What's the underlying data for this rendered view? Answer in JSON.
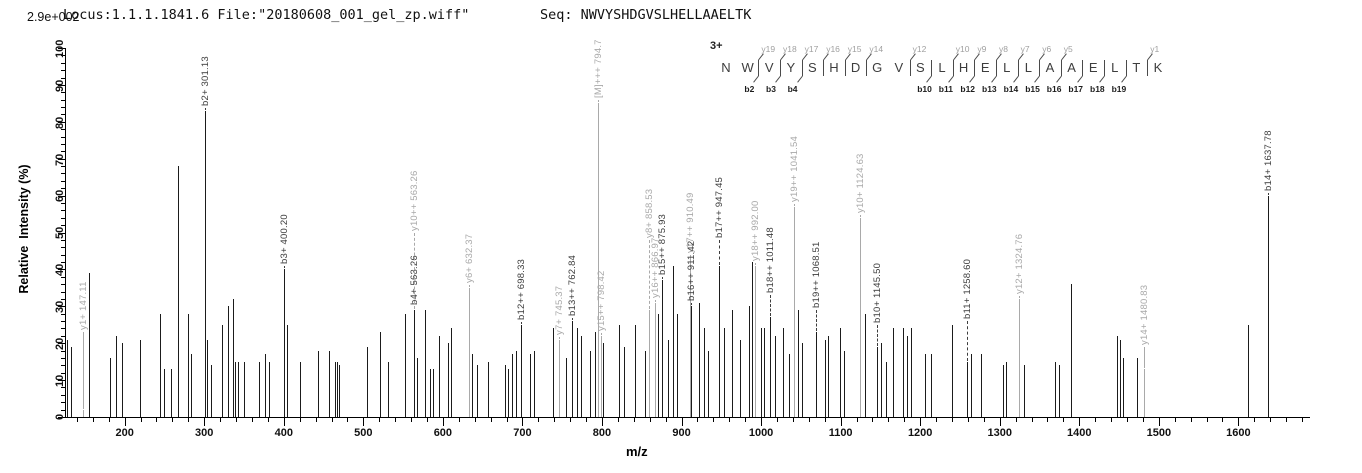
{
  "header": {
    "locus_file": "Locus:1.1.1.1841.6 File:\"20180608_001_gel_zp.wiff\"",
    "seq": "Seq: NWVYSHDGVSLHELLAAELTK",
    "scale_max": "2.9e+002"
  },
  "axes": {
    "x_label": "m/z",
    "y_label": "Relative  Intensity (%)",
    "x_min": 125,
    "x_max": 1690,
    "x_major_start": 200,
    "x_major_end": 1600,
    "x_major_step": 100,
    "x_minor_step": 20,
    "y_min": 0,
    "y_max": 100,
    "y_major_step": 10,
    "y_minor_step": 2
  },
  "colors": {
    "axis": "#000000",
    "peak_black": "#1b1b1b",
    "peak_gray": "#a9a9a9",
    "label_black": "#3d3d3d",
    "label_gray": "#a9a9a9"
  },
  "sequence_panel": {
    "charge": "3+",
    "residues": [
      "N",
      "W",
      "V",
      "Y",
      "S",
      "H",
      "D",
      "G",
      "V",
      "S",
      "L",
      "H",
      "E",
      "L",
      "L",
      "A",
      "A",
      "E",
      "L",
      "T",
      "K"
    ],
    "fragments": [
      {
        "gap": 2,
        "y": "y19",
        "b": "b2"
      },
      {
        "gap": 3,
        "y": "y18",
        "b": "b3"
      },
      {
        "gap": 4,
        "y": "y17",
        "b": "b4"
      },
      {
        "gap": 5,
        "y": "y16"
      },
      {
        "gap": 6,
        "y": "y15"
      },
      {
        "gap": 7,
        "y": "y14"
      },
      {
        "gap": 9,
        "y": "y12"
      },
      {
        "gap": 10,
        "b": "b10"
      },
      {
        "gap": 11,
        "y": "y10",
        "b": "b11"
      },
      {
        "gap": 12,
        "y": "y9",
        "b": "b12"
      },
      {
        "gap": 13,
        "y": "y8",
        "b": "b13"
      },
      {
        "gap": 14,
        "y": "y7",
        "b": "b14"
      },
      {
        "gap": 15,
        "y": "y6",
        "b": "b15"
      },
      {
        "gap": 16,
        "y": "y5",
        "b": "b16"
      },
      {
        "gap": 17,
        "b": "b17"
      },
      {
        "gap": 18,
        "b": "b18"
      },
      {
        "gap": 19,
        "b": "b19"
      },
      {
        "gap": 20,
        "y": "y1"
      }
    ]
  },
  "chart_data": {
    "type": "bar",
    "subtype": "ms2-fragmentation-spectrum",
    "title": "Locus:1.1.1.1841.6 File:\"20180608_001_gel_zp.wiff\"  Seq: NWVYSHDGVSLHELLAAELTK",
    "xlabel": "m/z",
    "ylabel": "Relative  Intensity (%)",
    "xlim": [
      125,
      1690
    ],
    "ylim": [
      0,
      100
    ],
    "intensity_scale_max": "2.9e+002",
    "precursor_charge": "3+",
    "legend": "black bars = b ions / unassigned, gray bars = y ions and [M]",
    "labeled_peaks": [
      {
        "label": "y1+ 147.11",
        "mz": 147.11,
        "intensity": 2,
        "series": "y",
        "label_from": 23
      },
      {
        "label": "b2+ 301.13",
        "mz": 301.13,
        "intensity": 83,
        "series": "b"
      },
      {
        "label": "b3+ 400.20",
        "mz": 400.2,
        "intensity": 40,
        "series": "b"
      },
      {
        "label": "b4+ 563.26",
        "mz": 563.26,
        "intensity": 29,
        "series": "b"
      },
      {
        "label": "y10++ 563.26",
        "mz": 563.26,
        "intensity": 29,
        "series": "y",
        "dashed": true,
        "label_from": 50,
        "no_bar": true
      },
      {
        "label": "y6+ 632.37",
        "mz": 632.37,
        "intensity": 35,
        "series": "y"
      },
      {
        "label": "b12++ 698.33",
        "mz": 698.33,
        "intensity": 25,
        "series": "b"
      },
      {
        "label": "y7+ 745.37",
        "mz": 745.37,
        "intensity": 21,
        "series": "y"
      },
      {
        "label": "b13++ 762.84",
        "mz": 762.84,
        "intensity": 26,
        "series": "b"
      },
      {
        "label": "[M]+++ 794.7",
        "mz": 794.7,
        "intensity": 85,
        "series": "precursor"
      },
      {
        "label": "y15++ 798.42",
        "mz": 798.42,
        "intensity": 22,
        "series": "y"
      },
      {
        "label": "y8+ 858.53",
        "mz": 858.53,
        "intensity": 29,
        "series": "y",
        "dashed": true,
        "label_from": 48
      },
      {
        "label": "y16++ 866.97",
        "mz": 866.97,
        "intensity": 31,
        "series": "y"
      },
      {
        "label": "b15++ 875.93",
        "mz": 875.93,
        "intensity": 37,
        "series": "b"
      },
      {
        "label": "y17++ 910.49",
        "mz": 910.49,
        "intensity": 38,
        "series": "y",
        "label_from": 44
      },
      {
        "label": "b16++ 911.42",
        "mz": 911.42,
        "intensity": 30,
        "series": "b"
      },
      {
        "label": "b17++ 947.45",
        "mz": 947.45,
        "intensity": 41,
        "series": "b",
        "dashed": true,
        "label_from": 48
      },
      {
        "label": "y18++ 992.00",
        "mz": 992.0,
        "intensity": 41,
        "series": "y"
      },
      {
        "label": "b18++ 1011.48",
        "mz": 1011.48,
        "intensity": 27,
        "series": "b",
        "dashed": true,
        "label_from": 33
      },
      {
        "label": "y19++ 1041.54",
        "mz": 1041.54,
        "intensity": 57,
        "series": "y"
      },
      {
        "label": "b19++ 1068.51",
        "mz": 1068.51,
        "intensity": 23,
        "series": "b",
        "dashed": true,
        "label_from": 29
      },
      {
        "label": "y10+ 1124.63",
        "mz": 1124.63,
        "intensity": 54,
        "series": "y"
      },
      {
        "label": "b10+ 1145.50",
        "mz": 1145.5,
        "intensity": 19,
        "series": "b",
        "dashed": true,
        "label_from": 25
      },
      {
        "label": "b11+ 1258.60",
        "mz": 1258.6,
        "intensity": 15,
        "series": "b",
        "dashed": true,
        "label_from": 26
      },
      {
        "label": "y12+ 1324.76",
        "mz": 1324.76,
        "intensity": 32,
        "series": "y"
      },
      {
        "label": "y14+ 1480.83",
        "mz": 1480.83,
        "intensity": 13,
        "series": "y",
        "label_from": 19
      },
      {
        "label": "b14+ 1637.78",
        "mz": 1637.78,
        "intensity": 60,
        "series": "b"
      }
    ],
    "unlabeled_peaks": [
      [
        128,
        21
      ],
      [
        133,
        19
      ],
      [
        155,
        39
      ],
      [
        182,
        16
      ],
      [
        189,
        22
      ],
      [
        197,
        20
      ],
      [
        219,
        21
      ],
      [
        244,
        28
      ],
      [
        250,
        13
      ],
      [
        258,
        13
      ],
      [
        267,
        68
      ],
      [
        280,
        28
      ],
      [
        284,
        17
      ],
      [
        304,
        21
      ],
      [
        308,
        14
      ],
      [
        322,
        25
      ],
      [
        330,
        30
      ],
      [
        336,
        32
      ],
      [
        339,
        15
      ],
      [
        342,
        15
      ],
      [
        350,
        15
      ],
      [
        369,
        15
      ],
      [
        376,
        17
      ],
      [
        381,
        15
      ],
      [
        404,
        25
      ],
      [
        420,
        15
      ],
      [
        443,
        18
      ],
      [
        457,
        18
      ],
      [
        464,
        15
      ],
      [
        467,
        15
      ],
      [
        470,
        14
      ],
      [
        504,
        19
      ],
      [
        521,
        23
      ],
      [
        531,
        15
      ],
      [
        552,
        28
      ],
      [
        568,
        16
      ],
      [
        577,
        29
      ],
      [
        584,
        13
      ],
      [
        588,
        13
      ],
      [
        595,
        22
      ],
      [
        607,
        20
      ],
      [
        610,
        24
      ],
      [
        637,
        17
      ],
      [
        643,
        14
      ],
      [
        657,
        15
      ],
      [
        678,
        14
      ],
      [
        682,
        13
      ],
      [
        687,
        17
      ],
      [
        692,
        18
      ],
      [
        709,
        17
      ],
      [
        714,
        18
      ],
      [
        738,
        24
      ],
      [
        755,
        16
      ],
      [
        768,
        24
      ],
      [
        774,
        22
      ],
      [
        785,
        18
      ],
      [
        791,
        23
      ],
      [
        801,
        20
      ],
      [
        822,
        25
      ],
      [
        828,
        19
      ],
      [
        841,
        25
      ],
      [
        854,
        18
      ],
      [
        871,
        28
      ],
      [
        883,
        21
      ],
      [
        889,
        41
      ],
      [
        894,
        28
      ],
      [
        922,
        31
      ],
      [
        928,
        24
      ],
      [
        933,
        18
      ],
      [
        953,
        24
      ],
      [
        964,
        29
      ],
      [
        973,
        21
      ],
      [
        985,
        30
      ],
      [
        989,
        42
      ],
      [
        1000,
        24
      ],
      [
        1004,
        24
      ],
      [
        1017,
        22
      ],
      [
        1028,
        24
      ],
      [
        1035,
        17
      ],
      [
        1047,
        29
      ],
      [
        1052,
        20
      ],
      [
        1080,
        21
      ],
      [
        1084,
        22
      ],
      [
        1099,
        24
      ],
      [
        1104,
        18
      ],
      [
        1130,
        28
      ],
      [
        1151,
        20
      ],
      [
        1157,
        15
      ],
      [
        1166,
        24
      ],
      [
        1178,
        24
      ],
      [
        1183,
        22
      ],
      [
        1188,
        24
      ],
      [
        1206,
        17
      ],
      [
        1214,
        17
      ],
      [
        1240,
        25
      ],
      [
        1264,
        17
      ],
      [
        1276,
        17
      ],
      [
        1304,
        14
      ],
      [
        1308,
        15
      ],
      [
        1330,
        14
      ],
      [
        1370,
        15
      ],
      [
        1374,
        14
      ],
      [
        1389,
        36
      ],
      [
        1447,
        22
      ],
      [
        1451,
        21
      ],
      [
        1455,
        16
      ],
      [
        1472,
        16
      ],
      [
        1612,
        25
      ]
    ]
  }
}
